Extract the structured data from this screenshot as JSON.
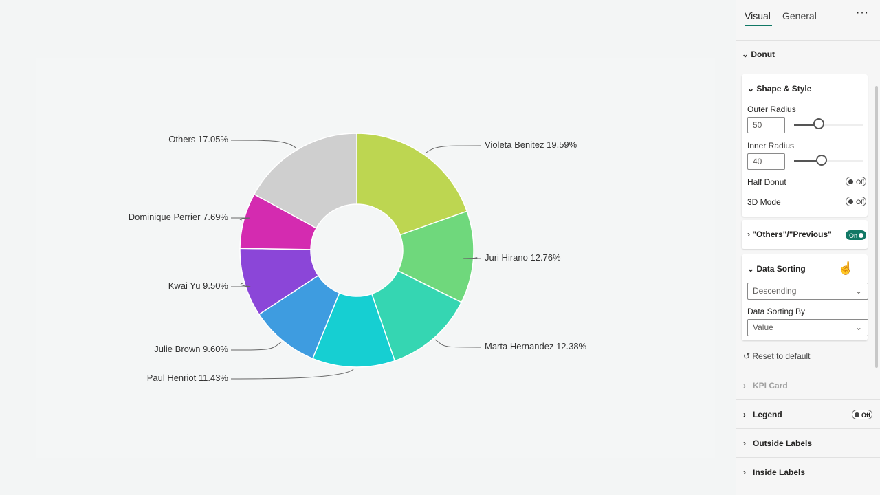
{
  "chart_data": {
    "type": "donut",
    "categories": [
      "Violeta Benitez",
      "Juri Hirano",
      "Marta Hernandez",
      "Paul Henriot",
      "Julie Brown",
      "Kwai Yu",
      "Dominique Perrier",
      "Others"
    ],
    "values": [
      19.59,
      12.76,
      12.38,
      11.43,
      9.6,
      9.5,
      7.69,
      17.05
    ],
    "value_labels": [
      "19.59%",
      "12.76%",
      "12.38%",
      "11.43%",
      "9.60%",
      "9.50%",
      "7.69%",
      "17.05%"
    ],
    "colors": [
      "#bdd651",
      "#6fd87c",
      "#35d6b2",
      "#16cfd2",
      "#3e9ce0",
      "#8b46d8",
      "#d42bb0",
      "#cfcfcf"
    ]
  },
  "panel": {
    "tabs": [
      "Visual",
      "General"
    ],
    "donut": "Donut",
    "shape_style": "Shape & Style",
    "outer_radius": {
      "label": "Outer Radius",
      "value": 50
    },
    "inner_radius": {
      "label": "Inner Radius",
      "value": 40
    },
    "half_donut": {
      "label": "Half Donut",
      "state": "Off"
    },
    "mode_3d": {
      "label": "3D Mode",
      "state": "Off"
    },
    "others": {
      "label": "\"Others\"/\"Previous\"",
      "state": "On"
    },
    "sorting": {
      "title": "Data Sorting",
      "order": "Descending",
      "by_label": "Data Sorting By",
      "by": "Value"
    },
    "reset": "Reset to default",
    "sections": [
      "KPI Card",
      "Legend",
      "Outside Labels",
      "Inside Labels"
    ],
    "legend_state": "Off"
  }
}
